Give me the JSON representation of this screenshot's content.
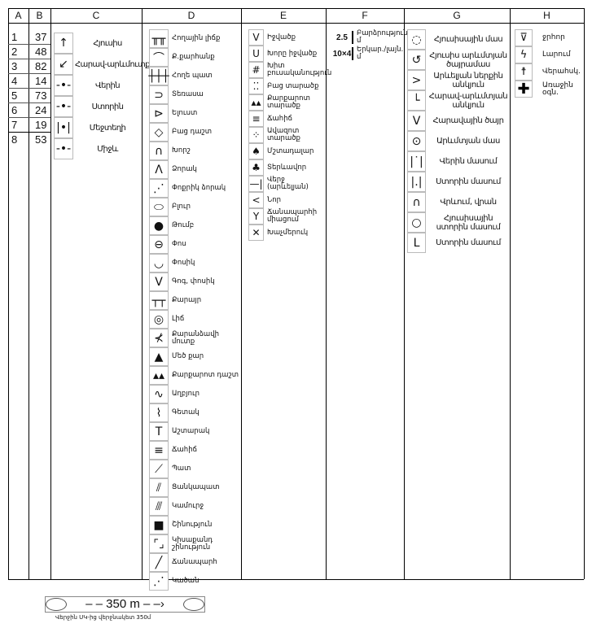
{
  "headers": [
    "A",
    "B",
    "C",
    "D",
    "E",
    "F",
    "G",
    "H"
  ],
  "col_a": [
    "1",
    "2",
    "3",
    "4",
    "5",
    "6",
    "7",
    "8"
  ],
  "col_b": [
    "37",
    "48",
    "82",
    "14",
    "73",
    "24",
    "19",
    "53"
  ],
  "col_c": [
    {
      "icon": "arrow-up-icon",
      "label": "Հյուսիս"
    },
    {
      "icon": "arrow-down-left-icon",
      "label": "Հարավ-արևմուտք"
    },
    {
      "icon": "upper-marker-icon",
      "label": "Վերին"
    },
    {
      "icon": "lower-marker-icon",
      "label": "Ստորին"
    },
    {
      "icon": "middle-marker-icon",
      "label": "Մեջտեղի"
    },
    {
      "icon": "between-marker-icon",
      "label": "Միջև"
    }
  ],
  "col_d": [
    {
      "icon": "earth-bank-icon",
      "label": "Հողային լիճք"
    },
    {
      "icon": "quarry-icon",
      "label": "Ք.քարհանք"
    },
    {
      "icon": "earth-wall-icon",
      "label": "Հողե պատ"
    },
    {
      "icon": "terrace-icon",
      "label": "Տեռասա"
    },
    {
      "icon": "spur-icon",
      "label": "Ելուստ"
    },
    {
      "icon": "diamond-icon",
      "label": "Բաց դաշտ"
    },
    {
      "icon": "re-entrant-icon",
      "label": "Խորշ"
    },
    {
      "icon": "gully-icon",
      "label": "Ձորակ"
    },
    {
      "icon": "small-gully-icon",
      "label": "Փոքրիկ ձորակ"
    },
    {
      "icon": "hill-icon",
      "label": "Բլուր"
    },
    {
      "icon": "knoll-icon",
      "label": "Թումբ"
    },
    {
      "icon": "pit-icon",
      "label": "Փոս"
    },
    {
      "icon": "small-pit-icon",
      "label": "Փոսիկ"
    },
    {
      "icon": "depression-icon",
      "label": "Գոգ, փոսիկ"
    },
    {
      "icon": "cliff-icon",
      "label": "Քարայր"
    },
    {
      "icon": "lake-icon",
      "label": "Լիճ"
    },
    {
      "icon": "cave-icon",
      "label": "Քարանձավի մուտք"
    },
    {
      "icon": "boulder-icon",
      "label": "Մեծ քար"
    },
    {
      "icon": "boulder-field-icon",
      "label": "Քարքարոտ դաշտ"
    },
    {
      "icon": "spring-icon",
      "label": "Աղբյուր"
    },
    {
      "icon": "stream-icon",
      "label": "Գետակ"
    },
    {
      "icon": "tower-icon",
      "label": "Աշտարակ"
    },
    {
      "icon": "marsh-icon",
      "label": "Ճահիճ"
    },
    {
      "icon": "wall-icon",
      "label": "Պատ"
    },
    {
      "icon": "fence-icon",
      "label": "Ցանկապատ"
    },
    {
      "icon": "bridge-icon",
      "label": "Կամուրջ"
    },
    {
      "icon": "building-icon",
      "label": "Շինություն"
    },
    {
      "icon": "ruin-icon",
      "label": "Կիսաքանդ շինություն"
    },
    {
      "icon": "road-icon",
      "label": "Ճանապարհ"
    },
    {
      "icon": "path-icon",
      "label": "Կածան"
    }
  ],
  "col_e": [
    {
      "icon": "depression-icon",
      "label": "Իջվածք"
    },
    {
      "icon": "deep-depression-icon",
      "label": "Խորը իջվածք"
    },
    {
      "icon": "dense-vegetation-icon",
      "label": "Խիտ բուսականություն"
    },
    {
      "icon": "open-land-icon",
      "label": "Բաց տարածք"
    },
    {
      "icon": "stony-ground-icon",
      "label": "Քարքարոտ տարածք"
    },
    {
      "icon": "marsh-icon",
      "label": "Ճահիճ"
    },
    {
      "icon": "sandy-ground-icon",
      "label": "Ավազոտ տարածք"
    },
    {
      "icon": "conifer-icon",
      "label": "Մշտադալար"
    },
    {
      "icon": "deciduous-tree-icon",
      "label": "Տերևավոր"
    },
    {
      "icon": "end-east-icon",
      "label": "Վերջ (արևելյան)"
    },
    {
      "icon": "bend-icon",
      "label": "Նոր"
    },
    {
      "icon": "junction-icon",
      "label": "Ճանապարհի միացում"
    },
    {
      "icon": "crossing-icon",
      "label": "Խաչմերուկ"
    }
  ],
  "col_f": [
    {
      "icon": "2.5",
      "label": "Բարձրություն մ"
    },
    {
      "icon": "10×4",
      "label": "Երկար./լայն. մ"
    }
  ],
  "col_g": [
    {
      "icon": "north-part-icon",
      "label": "Հյուսիսային մաս"
    },
    {
      "icon": "nw-edge-icon",
      "label": "Հյուսիս արևմտյան ծայրամաս"
    },
    {
      "icon": "east-inner-corner-icon",
      "label": "Արևելյան ներքին անկյուն"
    },
    {
      "icon": "sw-corner-icon",
      "label": "Հարավ-արևմտյան անկյուն"
    },
    {
      "icon": "south-tip-icon",
      "label": "Հարավային ծայր"
    },
    {
      "icon": "west-part-icon",
      "label": "Արևմտյան մաս"
    },
    {
      "icon": "upper-part-icon",
      "label": "Վերին մասում"
    },
    {
      "icon": "lower-part-icon",
      "label": "Ստորին մասում"
    },
    {
      "icon": "on-top-icon",
      "label": "Վրևում, վրան"
    },
    {
      "icon": "north-lower-icon",
      "label": "Հյուսիսային ստորին մասում"
    },
    {
      "icon": "lower-corner-icon",
      "label": "Ստորին մասում"
    }
  ],
  "col_h": [
    {
      "icon": "cup-icon",
      "label": "ջրհոր"
    },
    {
      "icon": "lightning-icon",
      "label": "Լարում"
    },
    {
      "icon": "person-icon",
      "label": "Վերահսկ."
    },
    {
      "icon": "first-aid-cross-icon",
      "label": "Առաջին օգն."
    }
  ],
  "footer": {
    "distance": "350 m",
    "caption": "Վերջին ՍԿ-ից վերջնակետ 350մ"
  }
}
